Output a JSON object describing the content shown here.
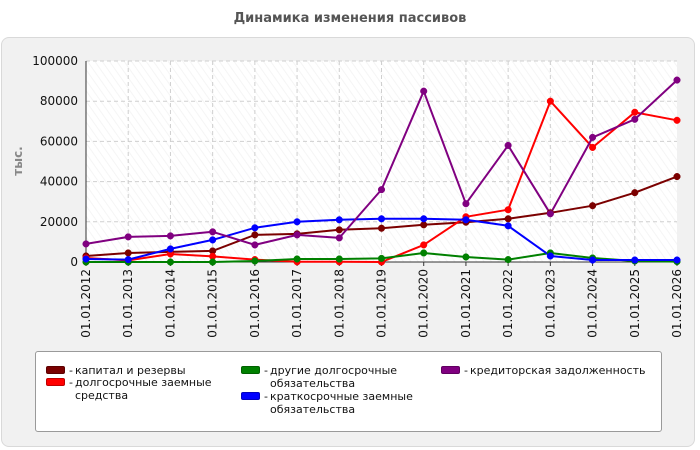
{
  "chart_data": {
    "type": "line",
    "title": "Динамика изменения пассивов",
    "xlabel": "",
    "ylabel": "тыс.",
    "ylim": [
      0,
      100000
    ],
    "yticks": [
      0,
      20000,
      40000,
      60000,
      80000,
      100000
    ],
    "grid": true,
    "legend_position": "bottom",
    "categories": [
      "01.01.2012",
      "01.01.2013",
      "01.01.2014",
      "01.01.2015",
      "01.01.2016",
      "01.01.2017",
      "01.01.2018",
      "01.01.2019",
      "01.01.2020",
      "01.01.2021",
      "01.01.2022",
      "01.01.2023",
      "01.01.2024",
      "01.01.2025",
      "01.01.2026"
    ],
    "series": [
      {
        "name": "капитал и резервы",
        "color": "#7b0000",
        "values": [
          3000,
          4500,
          5000,
          5500,
          13500,
          14000,
          16000,
          16800,
          18500,
          19800,
          21500,
          24500,
          28000,
          34500,
          42500
        ]
      },
      {
        "name": "долгосрочные заемные средства",
        "color": "#ff0000",
        "values": [
          2000,
          800,
          4000,
          2800,
          1200,
          100,
          100,
          0,
          8500,
          22500,
          26000,
          80000,
          57000,
          74500,
          70500
        ]
      },
      {
        "name": "другие долгосрочные обязательства",
        "color": "#008000",
        "values": [
          0,
          0,
          0,
          0,
          500,
          1500,
          1500,
          1800,
          4500,
          2500,
          1200,
          4500,
          2000,
          500,
          200
        ]
      },
      {
        "name": "краткосрочные заемные обязательства",
        "color": "#0000ff",
        "values": [
          1500,
          1200,
          6500,
          11000,
          17000,
          20000,
          21000,
          21500,
          21500,
          21000,
          18000,
          3000,
          1000,
          1000,
          1000
        ]
      },
      {
        "name": "кредиторская задолженность",
        "color": "#800080",
        "values": [
          9000,
          12500,
          13000,
          15000,
          8500,
          13500,
          12000,
          36000,
          85000,
          29000,
          58000,
          24000,
          62000,
          71000,
          90500
        ]
      }
    ]
  },
  "legend": {
    "dash": "-",
    "items": [
      {
        "label": "капитал и резервы",
        "color": "#7b0000"
      },
      {
        "label": "долгосрочные заемные средства",
        "color": "#ff0000"
      },
      {
        "label": "другие долгосрочные обязательства",
        "color": "#008000"
      },
      {
        "label": "краткосрочные заемные обязательства",
        "color": "#0000ff"
      },
      {
        "label": "кредиторская задолженность",
        "color": "#800080"
      }
    ]
  }
}
